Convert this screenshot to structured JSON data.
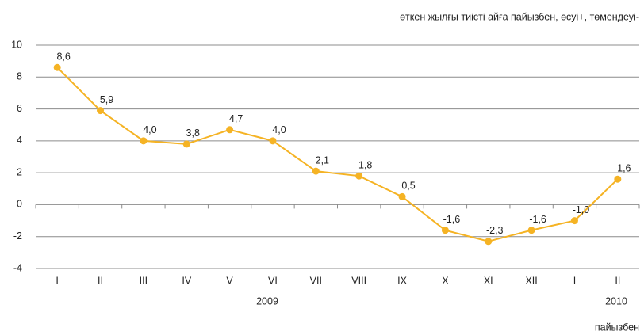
{
  "chart_data": {
    "type": "line",
    "subtitle": "өткен жылғы тиісті айға пайызбен, өсуі+, төмендеуі-",
    "unit_label": "пайызбен",
    "categories": [
      "I",
      "II",
      "III",
      "IV",
      "V",
      "VI",
      "VII",
      "VIII",
      "IX",
      "X",
      "XI",
      "XII",
      "I",
      "II"
    ],
    "years": [
      "2009",
      "2010"
    ],
    "series": [
      {
        "name": "өсуі",
        "color": "#f5b324",
        "values": [
          8.6,
          5.9,
          4.0,
          3.8,
          4.7,
          4.0,
          2.1,
          1.8,
          0.5,
          -1.6,
          -2.3,
          -1.6,
          -1.0,
          1.6
        ],
        "value_labels": [
          "8,6",
          "5,9",
          "4,0",
          "3,8",
          "4,7",
          "4,0",
          "2,1",
          "1,8",
          "0,5",
          "-1,6",
          "-2,3",
          "-1,6",
          "-1,0",
          "1,6"
        ]
      }
    ],
    "ylim": [
      -4,
      10
    ],
    "yticks": [
      -4,
      -2,
      0,
      2,
      4,
      6,
      8,
      10
    ],
    "grid": true
  }
}
